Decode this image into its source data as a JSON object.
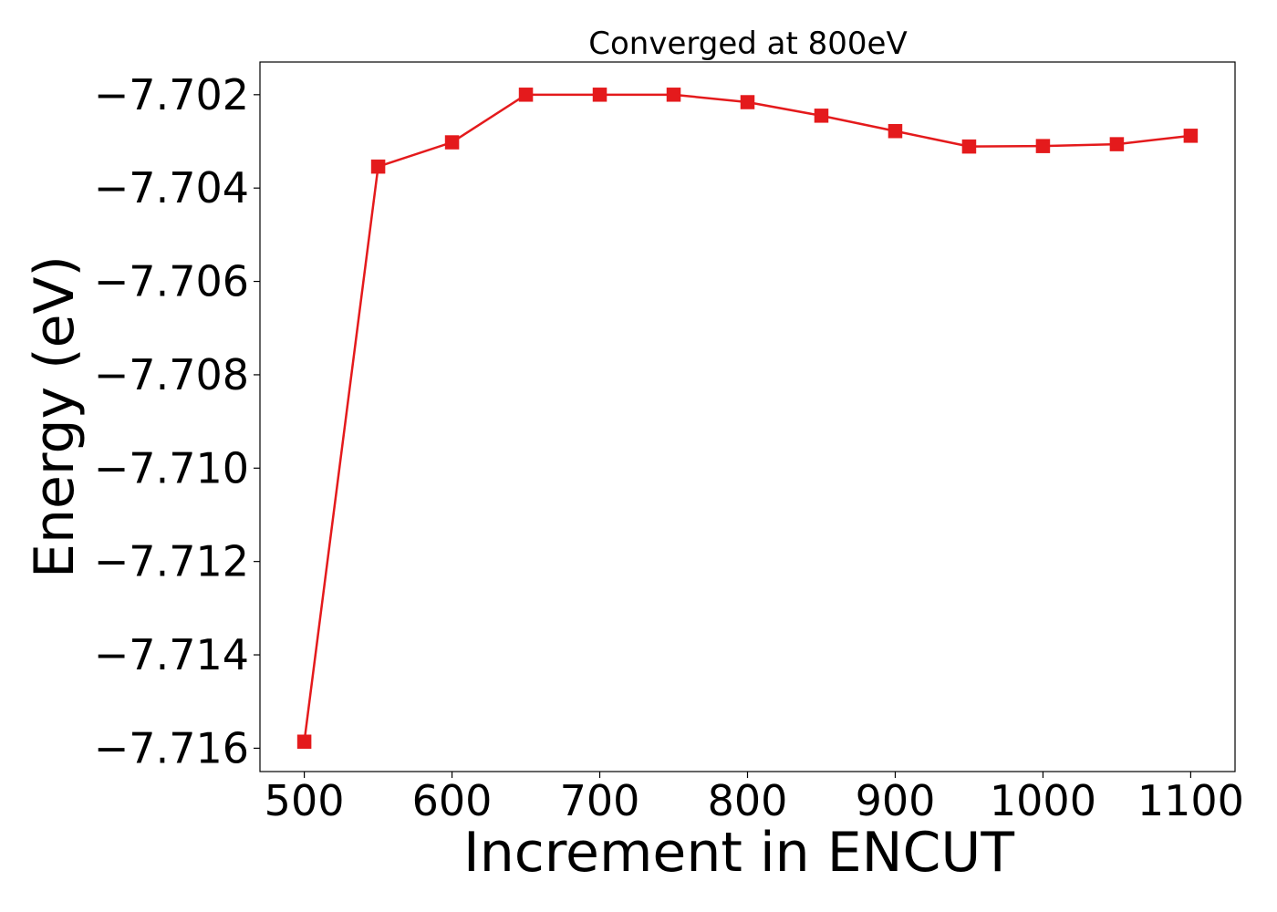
{
  "chart_data": {
    "type": "line",
    "title": "Converged at 800eV",
    "xlabel": "Increment in ENCUT",
    "ylabel": "Energy (eV)",
    "x": [
      500,
      550,
      600,
      650,
      700,
      750,
      800,
      850,
      900,
      950,
      1000,
      1050,
      1100
    ],
    "series": [
      {
        "values": [
          -7.71586,
          -7.70354,
          -7.70302,
          -7.702,
          -7.702,
          -7.702,
          -7.70216,
          -7.70245,
          -7.70278,
          -7.70311,
          -7.7031,
          -7.70306,
          -7.70288
        ],
        "color": "#e41a1c",
        "marker": "square"
      }
    ],
    "xticks": [
      500,
      600,
      700,
      800,
      900,
      1000,
      1100
    ],
    "xtick_labels": [
      "500",
      "600",
      "700",
      "800",
      "900",
      "1000",
      "1100"
    ],
    "yticks": [
      -7.702,
      -7.704,
      -7.706,
      -7.708,
      -7.71,
      -7.712,
      -7.714,
      -7.716
    ],
    "ytick_labels": [
      "−7.702",
      "−7.704",
      "−7.706",
      "−7.708",
      "−7.710",
      "−7.712",
      "−7.714",
      "−7.716"
    ],
    "xlim": [
      470,
      1130
    ],
    "ylim": [
      -7.7165,
      -7.7013
    ],
    "grid": false,
    "legend": "none"
  }
}
